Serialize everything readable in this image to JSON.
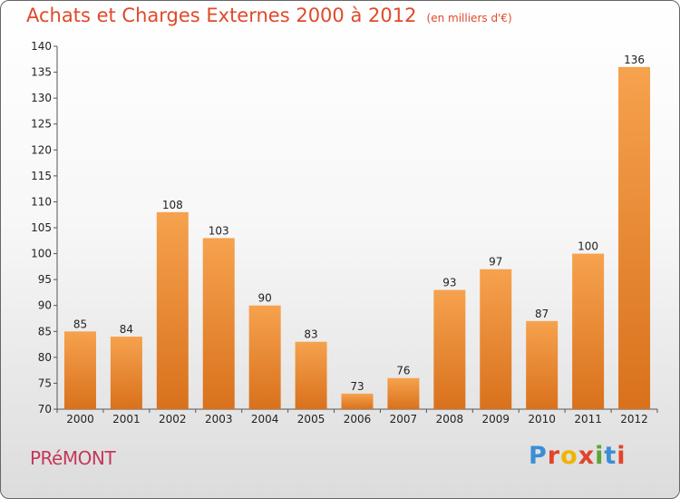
{
  "title": "Achats et Charges Externes 2000 à 2012",
  "unit_note": "(en milliers d'€)",
  "town": "PRéMONT",
  "logo": {
    "text": "Proxiti",
    "letters": [
      "P",
      "r",
      "o",
      "x",
      "i",
      "t",
      "i"
    ],
    "colors": [
      "#3a8ed6",
      "#e0442a",
      "#f0b400",
      "#e0442a",
      "#5aa532",
      "#3a8ed6",
      "#e0442a"
    ]
  },
  "colors": {
    "title": "#e0492a",
    "town": "#c5375a",
    "bar_light": "#f6a24e",
    "bar_dark": "#d9711c"
  },
  "chart_data": {
    "type": "bar",
    "categories": [
      "2000",
      "2001",
      "2002",
      "2003",
      "2004",
      "2005",
      "2006",
      "2007",
      "2008",
      "2009",
      "2010",
      "2011",
      "2012"
    ],
    "values": [
      85,
      84,
      108,
      103,
      90,
      83,
      73,
      76,
      93,
      97,
      87,
      100,
      136
    ],
    "ylim": [
      70,
      140
    ],
    "yticks": [
      70,
      75,
      80,
      85,
      90,
      95,
      100,
      105,
      110,
      115,
      120,
      125,
      130,
      135,
      140
    ],
    "grid": false
  }
}
